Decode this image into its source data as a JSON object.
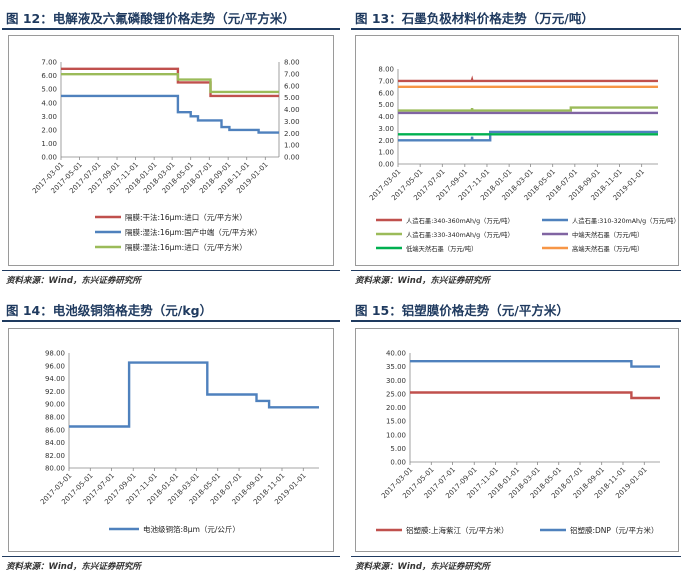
{
  "panels": [
    {
      "title": "图 12：电解液及六氟磷酸锂价格走势（元/平方米）",
      "source": "资料来源：Wind，东兴证券研究所",
      "chart_data": {
        "type": "line",
        "x_ticks": [
          "2017-03-01",
          "2017-05-01",
          "2017-07-01",
          "2017-09-01",
          "2017-11-01",
          "2018-01-01",
          "2018-03-01",
          "2018-05-01",
          "2018-07-01",
          "2018-09-01",
          "2018-11-01",
          "2019-01-01"
        ],
        "xlim": [
          "2017-03-01",
          "2019-02-15"
        ],
        "ylim": [
          0,
          7
        ],
        "y_ticks": [
          "0.00",
          "1.00",
          "2.00",
          "3.00",
          "4.00",
          "5.00",
          "6.00",
          "7.00"
        ],
        "y2lim": [
          0,
          8
        ],
        "y2_ticks": [
          "0.00",
          "1.00",
          "2.00",
          "3.00",
          "4.00",
          "5.00",
          "6.00",
          "7.00",
          "8.00"
        ],
        "series": [
          {
            "name": "隔膜:干法:16μm:进口（元/平方米）",
            "color": "#c0504d",
            "axis": "y",
            "points": [
              [
                "2017-03-01",
                6.5
              ],
              [
                "2018-03-20",
                6.5
              ],
              [
                "2018-03-20",
                5.5
              ],
              [
                "2018-07-05",
                5.5
              ],
              [
                "2018-07-05",
                4.5
              ],
              [
                "2019-02-15",
                4.5
              ]
            ]
          },
          {
            "name": "隔膜:湿法:16μm:国产中端（元/平方米）",
            "color": "#4f81bd",
            "axis": "y",
            "points": [
              [
                "2017-03-01",
                4.5
              ],
              [
                "2018-03-20",
                4.5
              ],
              [
                "2018-03-20",
                3.3
              ],
              [
                "2018-05-01",
                3.3
              ],
              [
                "2018-05-01",
                3.0
              ],
              [
                "2018-05-25",
                3.0
              ],
              [
                "2018-05-25",
                2.7
              ],
              [
                "2018-08-10",
                2.7
              ],
              [
                "2018-08-10",
                2.2
              ],
              [
                "2018-09-05",
                2.2
              ],
              [
                "2018-09-05",
                2.0
              ],
              [
                "2018-12-10",
                2.0
              ],
              [
                "2018-12-10",
                1.8
              ],
              [
                "2019-02-15",
                1.8
              ]
            ]
          },
          {
            "name": "隔膜:湿法:16μm:进口（元/平方米）",
            "color": "#9bbb59",
            "axis": "y",
            "points": [
              [
                "2017-03-01",
                6.1
              ],
              [
                "2018-03-20",
                6.1
              ],
              [
                "2018-03-20",
                5.7
              ],
              [
                "2018-07-05",
                5.7
              ],
              [
                "2018-07-05",
                4.8
              ],
              [
                "2019-02-15",
                4.8
              ]
            ]
          }
        ]
      }
    },
    {
      "title": "图 13：石墨负极材料价格走势（万元/吨）",
      "source": "资料来源：Wind，东兴证券研究所",
      "chart_data": {
        "type": "line",
        "x_ticks": [
          "2017-03-01",
          "2017-05-01",
          "2017-07-01",
          "2017-09-01",
          "2017-11-01",
          "2018-01-01",
          "2018-03-01",
          "2018-05-01",
          "2018-07-01",
          "2018-09-01",
          "2018-11-01",
          "2019-01-01"
        ],
        "xlim": [
          "2017-03-01",
          "2019-02-15"
        ],
        "ylim": [
          0,
          8
        ],
        "y_ticks": [
          "0.00",
          "1.00",
          "2.00",
          "3.00",
          "4.00",
          "5.00",
          "6.00",
          "7.00",
          "8.00"
        ],
        "series": [
          {
            "name": "人造石墨:340-360mAh/g（万元/吨）",
            "color": "#c0504d",
            "points": [
              [
                "2017-03-01",
                7.0
              ],
              [
                "2017-09-20",
                7.0
              ],
              [
                "2017-09-21",
                7.1
              ],
              [
                "2017-09-22",
                7.0
              ],
              [
                "2019-02-15",
                7.0
              ]
            ]
          },
          {
            "name": "人造石墨:310-320mAh/g（万元/吨）",
            "color": "#4f81bd",
            "points": [
              [
                "2017-03-01",
                2.0
              ],
              [
                "2017-09-20",
                2.0
              ],
              [
                "2017-09-21",
                2.3
              ],
              [
                "2017-09-22",
                2.0
              ],
              [
                "2017-11-10",
                2.0
              ],
              [
                "2017-11-10",
                2.7
              ],
              [
                "2019-02-15",
                2.7
              ]
            ]
          },
          {
            "name": "人造石墨:330-340mAh/g（万元/吨）",
            "color": "#9bbb59",
            "points": [
              [
                "2017-03-01",
                4.5
              ],
              [
                "2017-09-20",
                4.5
              ],
              [
                "2017-09-21",
                4.7
              ],
              [
                "2017-09-22",
                4.5
              ],
              [
                "2018-06-20",
                4.5
              ],
              [
                "2018-06-20",
                4.75
              ],
              [
                "2019-02-15",
                4.75
              ]
            ]
          },
          {
            "name": "中端天然石墨（万元/吨）",
            "color": "#8064a2",
            "points": [
              [
                "2017-03-01",
                4.3
              ],
              [
                "2019-02-15",
                4.3
              ]
            ]
          },
          {
            "name": "低端天然石墨（万元/吨）",
            "color": "#00b050",
            "points": [
              [
                "2017-03-01",
                2.5
              ],
              [
                "2019-02-15",
                2.5
              ]
            ]
          },
          {
            "name": "高端天然石墨（万元/吨）",
            "color": "#f79646",
            "points": [
              [
                "2017-03-01",
                6.5
              ],
              [
                "2019-02-15",
                6.5
              ]
            ]
          }
        ]
      }
    },
    {
      "title": "图 14：电池级铜箔格走势（元/kg）",
      "source": "资料来源：Wind，东兴证券研究所",
      "chart_data": {
        "type": "line",
        "x_ticks": [
          "2017-03-01",
          "2017-05-01",
          "2017-07-01",
          "2017-09-01",
          "2017-11-01",
          "2018-01-01",
          "2018-03-01",
          "2018-05-01",
          "2018-07-01",
          "2018-09-01",
          "2018-11-01",
          "2019-01-01"
        ],
        "xlim": [
          "2017-03-01",
          "2019-02-15"
        ],
        "ylim": [
          80,
          98
        ],
        "y_ticks": [
          "80.00",
          "82.00",
          "84.00",
          "86.00",
          "88.00",
          "90.00",
          "92.00",
          "94.00",
          "96.00",
          "98.00"
        ],
        "series": [
          {
            "name": "电池级铜箔:8μm（元/公斤）",
            "color": "#4f81bd",
            "points": [
              [
                "2017-03-01",
                86.5
              ],
              [
                "2017-08-20",
                86.5
              ],
              [
                "2017-08-20",
                96.5
              ],
              [
                "2018-04-01",
                96.5
              ],
              [
                "2018-04-01",
                91.5
              ],
              [
                "2018-08-20",
                91.5
              ],
              [
                "2018-08-20",
                90.5
              ],
              [
                "2018-09-25",
                90.5
              ],
              [
                "2018-09-25",
                89.5
              ],
              [
                "2019-02-15",
                89.5
              ]
            ]
          }
        ]
      }
    },
    {
      "title": "图 15：铝塑膜价格走势（元/平方米）",
      "source": "资料来源：Wind，东兴证券研究所",
      "chart_data": {
        "type": "line",
        "x_ticks": [
          "2017-03-01",
          "2017-05-01",
          "2017-07-01",
          "2017-09-01",
          "2017-11-01",
          "2018-01-01",
          "2018-03-01",
          "2018-05-01",
          "2018-07-01",
          "2018-09-01",
          "2018-11-01",
          "2019-01-01"
        ],
        "xlim": [
          "2017-03-01",
          "2019-02-15"
        ],
        "ylim": [
          0,
          40
        ],
        "y_ticks": [
          "0.00",
          "5.00",
          "10.00",
          "15.00",
          "20.00",
          "25.00",
          "30.00",
          "35.00",
          "40.00"
        ],
        "series": [
          {
            "name": "铝塑膜:上海紫江（元/平方米）",
            "color": "#c0504d",
            "points": [
              [
                "2017-03-01",
                25.5
              ],
              [
                "2018-11-25",
                25.5
              ],
              [
                "2018-11-25",
                23.5
              ],
              [
                "2019-02-15",
                23.5
              ]
            ]
          },
          {
            "name": "铝塑膜:DNP（元/平方米）",
            "color": "#4f81bd",
            "points": [
              [
                "2017-03-01",
                37.0
              ],
              [
                "2018-11-25",
                37.0
              ],
              [
                "2018-11-25",
                35.0
              ],
              [
                "2019-02-15",
                35.0
              ]
            ]
          }
        ]
      }
    }
  ]
}
